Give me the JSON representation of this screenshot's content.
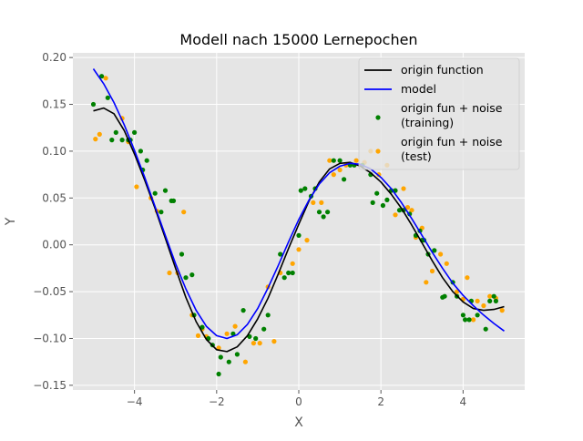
{
  "chart_data": {
    "type": "scatter",
    "title": "Modell nach 15000 Lernepochen",
    "xlabel": "X",
    "ylabel": "Y",
    "xlim": [
      -5.5,
      5.5
    ],
    "ylim": [
      -0.155,
      0.205
    ],
    "xticks": [
      -4,
      -2,
      0,
      2,
      4
    ],
    "xtick_labels": [
      "−4",
      "−2",
      "0",
      "2",
      "4"
    ],
    "yticks": [
      -0.15,
      -0.1,
      -0.05,
      0.0,
      0.05,
      0.1,
      0.15,
      0.2
    ],
    "ytick_labels": [
      "−0.15",
      "−0.10",
      "−0.05",
      "0.00",
      "0.05",
      "0.10",
      "0.15",
      "0.20"
    ],
    "grid": true,
    "legend_position": "top-right",
    "background": "#e5e5e5",
    "series": [
      {
        "name": "origin function",
        "kind": "line",
        "color": "#000000",
        "x": [
          -5.0,
          -4.75,
          -4.5,
          -4.25,
          -4.0,
          -3.75,
          -3.5,
          -3.25,
          -3.0,
          -2.75,
          -2.5,
          -2.25,
          -2.0,
          -1.75,
          -1.5,
          -1.25,
          -1.0,
          -0.75,
          -0.5,
          -0.25,
          0.0,
          0.25,
          0.5,
          0.75,
          1.0,
          1.25,
          1.5,
          1.75,
          2.0,
          2.25,
          2.5,
          2.75,
          3.0,
          3.25,
          3.5,
          3.75,
          4.0,
          4.25,
          4.5,
          4.75,
          5.0
        ],
        "y": [
          0.143,
          0.146,
          0.14,
          0.122,
          0.097,
          0.069,
          0.039,
          0.007,
          -0.025,
          -0.056,
          -0.082,
          -0.101,
          -0.112,
          -0.114,
          -0.109,
          -0.097,
          -0.079,
          -0.057,
          -0.031,
          -0.004,
          0.022,
          0.047,
          0.067,
          0.081,
          0.087,
          0.088,
          0.084,
          0.077,
          0.067,
          0.054,
          0.039,
          0.021,
          0.002,
          -0.017,
          -0.035,
          -0.05,
          -0.061,
          -0.068,
          -0.07,
          -0.069,
          -0.066
        ]
      },
      {
        "name": "model",
        "kind": "line",
        "color": "#0000ff",
        "x": [
          -5.0,
          -4.75,
          -4.5,
          -4.25,
          -4.0,
          -3.75,
          -3.5,
          -3.25,
          -3.0,
          -2.75,
          -2.5,
          -2.25,
          -2.0,
          -1.75,
          -1.5,
          -1.25,
          -1.0,
          -0.75,
          -0.5,
          -0.25,
          0.0,
          0.25,
          0.5,
          0.75,
          1.0,
          1.25,
          1.5,
          1.75,
          2.0,
          2.25,
          2.5,
          2.75,
          3.0,
          3.25,
          3.5,
          3.75,
          4.0,
          4.25,
          4.5,
          4.75,
          5.0
        ],
        "y": [
          0.188,
          0.172,
          0.152,
          0.128,
          0.101,
          0.072,
          0.041,
          0.01,
          -0.02,
          -0.047,
          -0.07,
          -0.087,
          -0.097,
          -0.1,
          -0.096,
          -0.085,
          -0.068,
          -0.046,
          -0.022,
          0.003,
          0.027,
          0.048,
          0.065,
          0.077,
          0.084,
          0.087,
          0.086,
          0.081,
          0.072,
          0.06,
          0.045,
          0.028,
          0.01,
          -0.008,
          -0.025,
          -0.041,
          -0.054,
          -0.065,
          -0.075,
          -0.084,
          -0.092
        ]
      },
      {
        "name": "origin fun + noise\n(training)",
        "legend_lines": [
          "origin fun + noise",
          "(training)"
        ],
        "kind": "scatter",
        "color": "#008000",
        "x": [
          -5.0,
          -4.8,
          -4.65,
          -4.55,
          -4.45,
          -4.3,
          -4.15,
          -4.1,
          -4.0,
          -3.85,
          -3.8,
          -3.7,
          -3.5,
          -3.35,
          -3.25,
          -3.1,
          -3.05,
          -2.85,
          -2.75,
          -2.6,
          -2.55,
          -2.35,
          -2.2,
          -2.1,
          -1.95,
          -1.9,
          -1.7,
          -1.6,
          -1.5,
          -1.35,
          -1.2,
          -1.05,
          -0.85,
          -0.75,
          -0.45,
          -0.35,
          -0.25,
          -0.15,
          0.0,
          0.05,
          0.15,
          0.3,
          0.4,
          0.5,
          0.6,
          0.7,
          0.85,
          1.0,
          1.1,
          1.25,
          1.35,
          1.55,
          1.75,
          1.8,
          1.9,
          2.05,
          2.15,
          2.25,
          2.35,
          2.45,
          2.55,
          2.7,
          2.85,
          2.95,
          3.0,
          3.05,
          3.15,
          3.3,
          3.5,
          3.55,
          3.75,
          3.85,
          4.0,
          4.05,
          4.15,
          4.2,
          4.35,
          4.55,
          4.65,
          4.75,
          4.8
        ],
        "y": [
          0.15,
          0.18,
          0.157,
          0.112,
          0.12,
          0.112,
          0.112,
          0.112,
          0.12,
          0.1,
          0.08,
          0.09,
          0.055,
          0.035,
          0.058,
          0.047,
          0.047,
          -0.01,
          -0.035,
          -0.032,
          -0.075,
          -0.088,
          -0.1,
          -0.107,
          -0.138,
          -0.12,
          -0.125,
          -0.095,
          -0.117,
          -0.07,
          -0.098,
          -0.1,
          -0.09,
          -0.075,
          -0.01,
          -0.035,
          -0.03,
          -0.03,
          0.01,
          0.058,
          0.06,
          0.052,
          0.06,
          0.035,
          0.03,
          0.035,
          0.09,
          0.09,
          0.07,
          0.085,
          0.085,
          0.085,
          0.075,
          0.045,
          0.055,
          0.042,
          0.048,
          0.058,
          0.058,
          0.037,
          0.037,
          0.033,
          0.01,
          0.015,
          0.005,
          0.005,
          -0.01,
          -0.006,
          -0.056,
          -0.055,
          -0.04,
          -0.055,
          -0.075,
          -0.08,
          -0.08,
          -0.06,
          -0.075,
          -0.09,
          -0.06,
          -0.055,
          -0.06
        ]
      },
      {
        "name": "origin fun + noise\n(test)",
        "legend_lines": [
          "origin fun + noise",
          "(test)"
        ],
        "kind": "scatter",
        "color": "#ffa500",
        "x": [
          -4.95,
          -4.85,
          -4.7,
          -4.3,
          -4.15,
          -3.95,
          -3.6,
          -3.45,
          -3.15,
          -2.95,
          -2.8,
          -2.6,
          -2.45,
          -2.35,
          -2.25,
          -1.95,
          -1.75,
          -1.55,
          -1.3,
          -1.1,
          -0.95,
          -0.75,
          -0.6,
          -0.45,
          -0.15,
          0.0,
          0.2,
          0.35,
          0.55,
          0.75,
          0.85,
          1.0,
          1.15,
          1.4,
          1.6,
          1.75,
          1.95,
          2.15,
          2.35,
          2.55,
          2.65,
          2.75,
          2.85,
          3.0,
          3.1,
          3.25,
          3.45,
          3.6,
          3.85,
          4.0,
          4.1,
          4.25,
          4.35,
          4.5,
          4.65,
          4.8,
          4.95
        ],
        "y": [
          0.113,
          0.118,
          0.178,
          0.135,
          0.11,
          0.062,
          0.05,
          0.036,
          -0.03,
          -0.03,
          0.035,
          -0.075,
          -0.097,
          -0.09,
          -0.098,
          -0.11,
          -0.095,
          -0.087,
          -0.125,
          -0.105,
          -0.105,
          -0.045,
          -0.103,
          -0.03,
          -0.02,
          -0.005,
          0.005,
          0.045,
          0.045,
          0.09,
          0.075,
          0.08,
          0.085,
          0.09,
          0.088,
          0.1,
          0.075,
          0.085,
          0.032,
          0.06,
          0.04,
          0.037,
          0.008,
          0.018,
          -0.04,
          -0.028,
          -0.01,
          -0.02,
          -0.05,
          -0.058,
          -0.035,
          -0.08,
          -0.06,
          -0.065,
          -0.055,
          -0.057,
          -0.07
        ]
      }
    ]
  }
}
